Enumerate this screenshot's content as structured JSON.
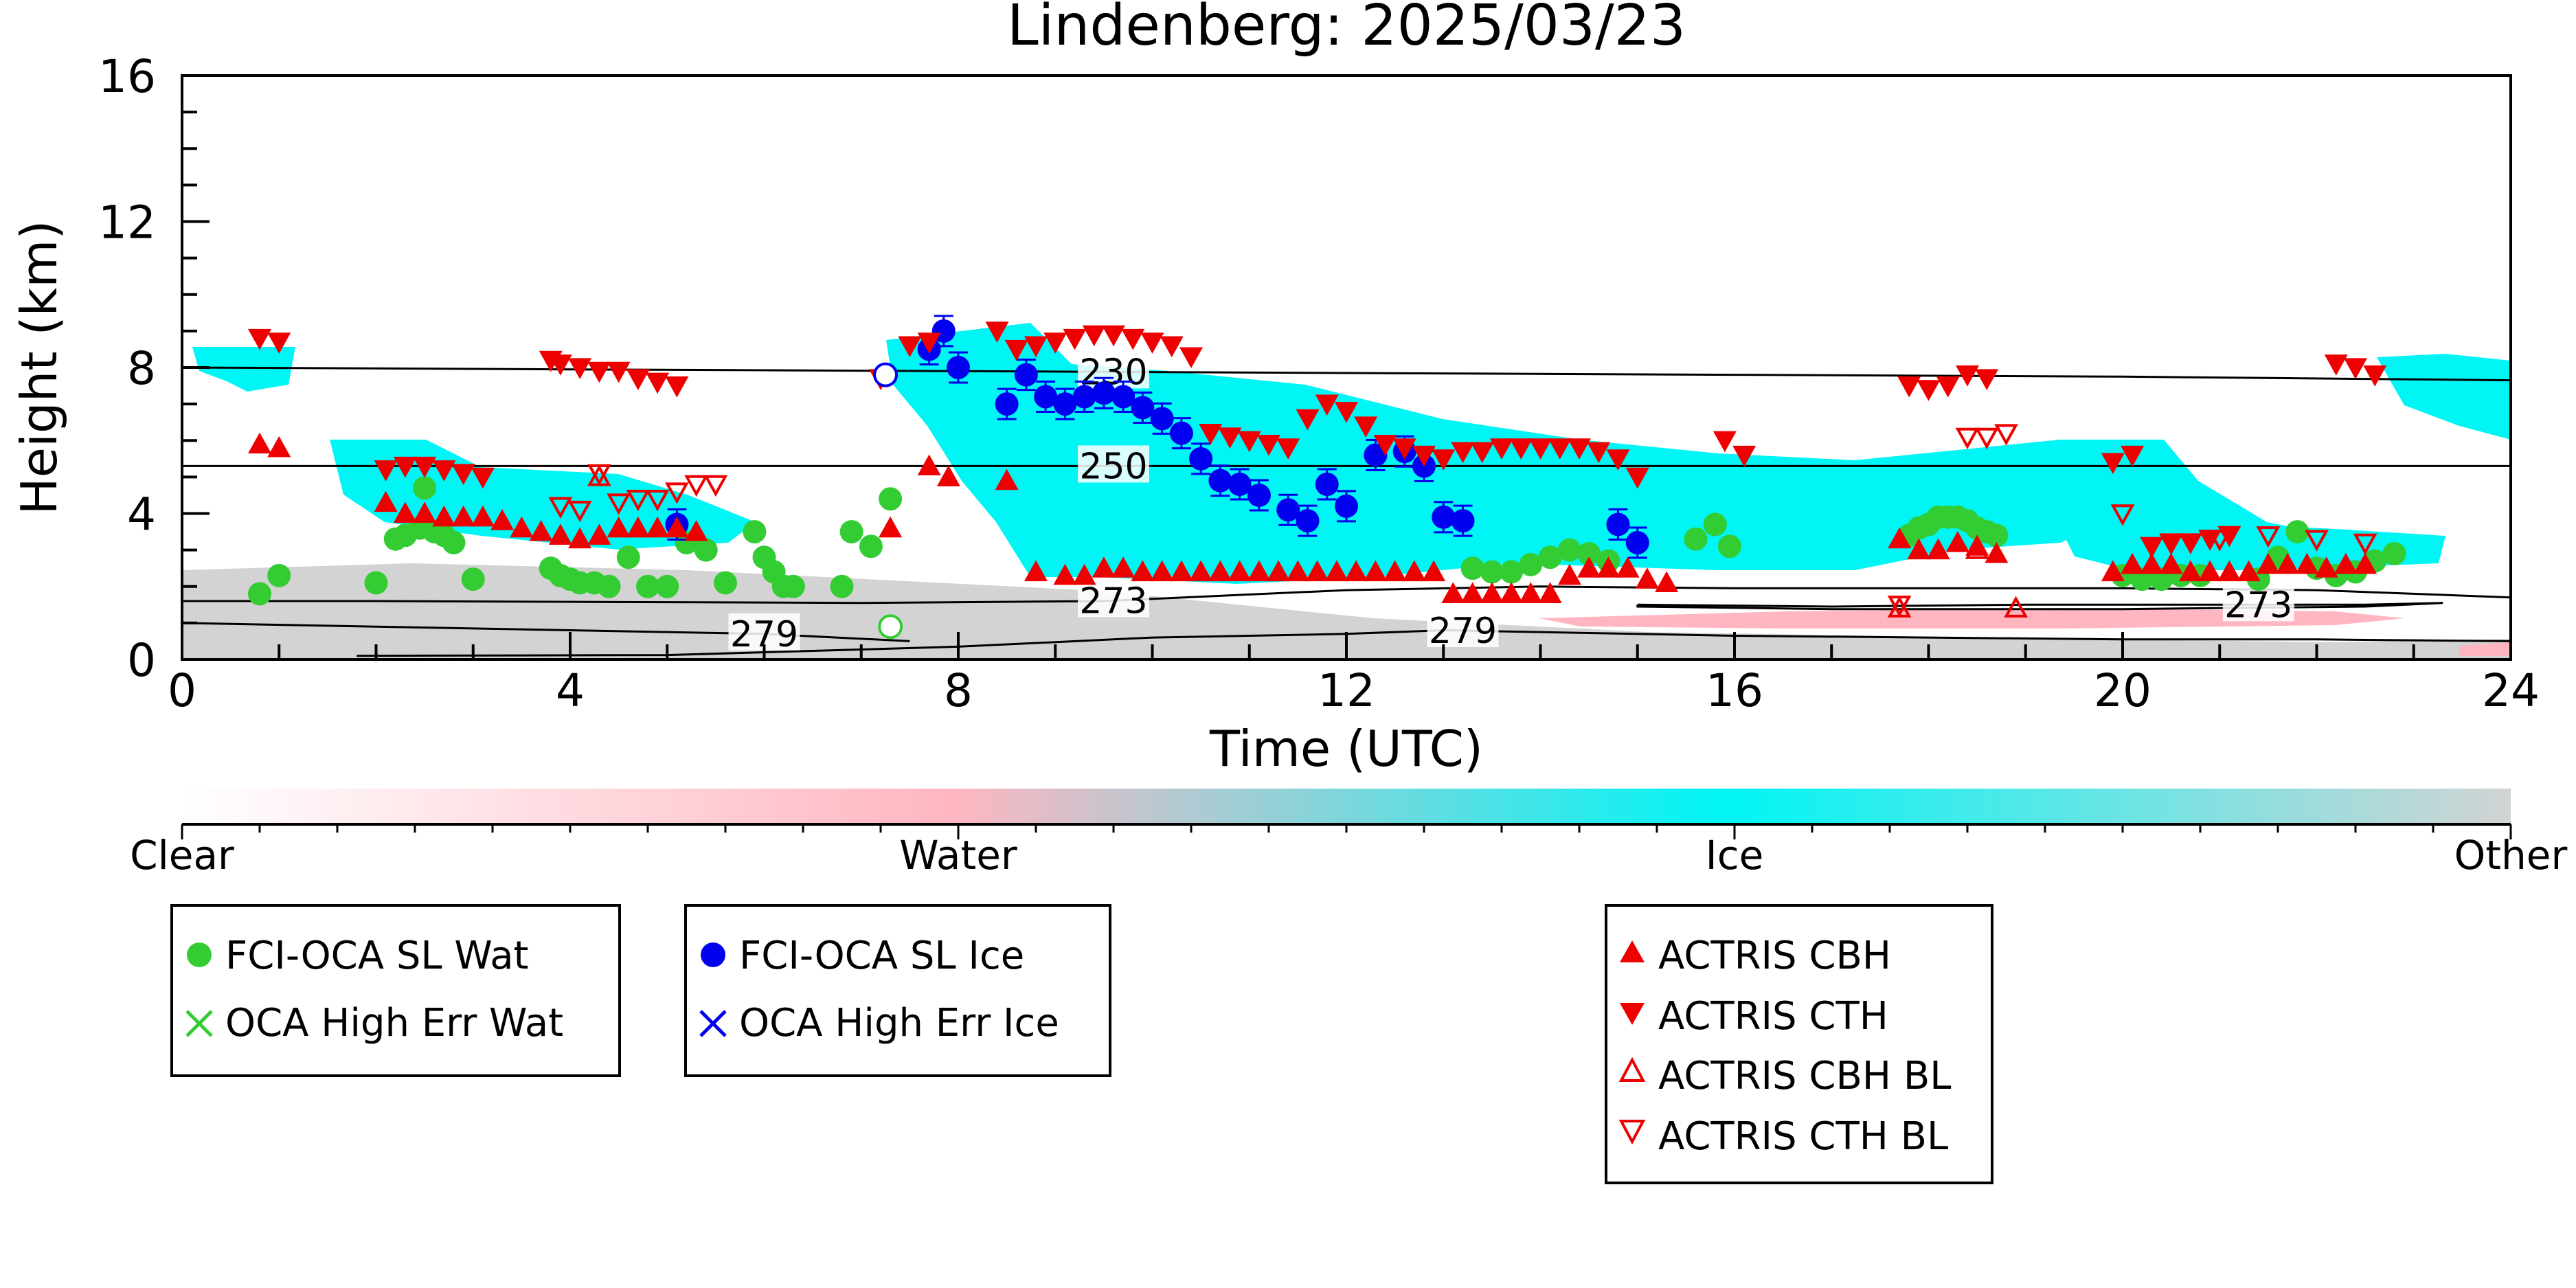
{
  "chart_data": {
    "type": "scatter",
    "title": "Lindenberg: 2025/03/23",
    "xlabel": "Time (UTC)",
    "ylabel": "Height (km)",
    "xlim": [
      0,
      24
    ],
    "ylim": [
      0,
      16
    ],
    "xticks": [
      "0",
      "4",
      "8",
      "12",
      "16",
      "20",
      "24"
    ],
    "yticks": [
      "0",
      "4",
      "8",
      "12",
      "16"
    ],
    "colorbar": {
      "labels": [
        "Clear",
        "Water",
        "Ice",
        "Other"
      ],
      "colors": [
        "#ffffff",
        "#ffb6c1",
        "#00f5f5",
        "#d3d3d3"
      ]
    },
    "contours": [
      {
        "label": "230",
        "label_x": 9.6,
        "points": [
          [
            0,
            8.0
          ],
          [
            4,
            7.95
          ],
          [
            8,
            7.9
          ],
          [
            12,
            7.85
          ],
          [
            16,
            7.8
          ],
          [
            20,
            7.75
          ],
          [
            24,
            7.65
          ]
        ]
      },
      {
        "label": "250",
        "label_x": 9.6,
        "points": [
          [
            0,
            5.3
          ],
          [
            4,
            5.3
          ],
          [
            8,
            5.3
          ],
          [
            12,
            5.3
          ],
          [
            16,
            5.3
          ],
          [
            20,
            5.3
          ],
          [
            24,
            5.3
          ]
        ]
      },
      {
        "label": "273",
        "label_x": 9.6,
        "points": [
          [
            0,
            1.6
          ],
          [
            2,
            1.6
          ],
          [
            4,
            1.58
          ],
          [
            7,
            1.55
          ],
          [
            9.5,
            1.6
          ],
          [
            12,
            1.9
          ],
          [
            14,
            2.0
          ],
          [
            16,
            1.95
          ],
          [
            18,
            1.95
          ],
          [
            20,
            1.95
          ],
          [
            22,
            1.9
          ],
          [
            24,
            1.7
          ]
        ]
      },
      {
        "label": "273",
        "label_x": 21.4,
        "points": [
          [
            15,
            1.5
          ],
          [
            17,
            1.45
          ],
          [
            19,
            1.5
          ],
          [
            21,
            1.5
          ],
          [
            22.5,
            1.5
          ],
          [
            23.3,
            1.55
          ],
          [
            22.5,
            1.45
          ],
          [
            20,
            1.38
          ],
          [
            17,
            1.38
          ],
          [
            15,
            1.45
          ],
          [
            15,
            1.5
          ]
        ]
      },
      {
        "label": "279",
        "label_x": 6.0,
        "points": [
          [
            0,
            1.0
          ],
          [
            2,
            0.9
          ],
          [
            4,
            0.8
          ],
          [
            6,
            0.7
          ],
          [
            7.5,
            0.5
          ]
        ]
      },
      {
        "label": "279",
        "label_x": 13.2,
        "points": [
          [
            1.8,
            0.1
          ],
          [
            5,
            0.12
          ],
          [
            8,
            0.35
          ],
          [
            10,
            0.6
          ],
          [
            12,
            0.7
          ],
          [
            13,
            0.8
          ],
          [
            16,
            0.65
          ],
          [
            18,
            0.6
          ],
          [
            20,
            0.55
          ],
          [
            22,
            0.55
          ],
          [
            24,
            0.5
          ]
        ]
      }
    ],
    "series": [
      {
        "name": "FCI-OCA SL Wat",
        "marker": "circle",
        "color": "#33cc33",
        "x": [
          0.8,
          1.0,
          2.0,
          2.2,
          2.3,
          2.45,
          2.5,
          2.6,
          2.7,
          2.8,
          3.0,
          3.8,
          3.9,
          4.0,
          4.1,
          4.25,
          4.4,
          4.6,
          4.8,
          5.0,
          5.2,
          5.4,
          5.6,
          5.9,
          6.0,
          6.1,
          6.2,
          6.3,
          6.8,
          6.9,
          7.1,
          7.3,
          13.3,
          13.5,
          13.7,
          13.9,
          14.1,
          14.3,
          14.5,
          14.7,
          15.6,
          15.8,
          15.95,
          17.8,
          17.9,
          18.0,
          18.1,
          18.2,
          18.3,
          18.4,
          18.5,
          18.6,
          18.7,
          20.0,
          20.2,
          20.4,
          20.6,
          20.8,
          21.4,
          21.6,
          21.8,
          22.0,
          22.2,
          22.4,
          22.6,
          22.8
        ],
        "y": [
          1.8,
          2.3,
          2.1,
          3.3,
          3.4,
          3.6,
          4.7,
          3.5,
          3.4,
          3.2,
          2.2,
          2.5,
          2.3,
          2.2,
          2.1,
          2.1,
          2.0,
          2.8,
          2.0,
          2.0,
          3.2,
          3.0,
          2.1,
          3.5,
          2.8,
          2.4,
          2.0,
          2.0,
          2.0,
          3.5,
          3.1,
          4.4,
          2.5,
          2.4,
          2.4,
          2.6,
          2.8,
          3.0,
          2.9,
          2.7,
          3.3,
          3.7,
          3.1,
          3.4,
          3.6,
          3.7,
          3.9,
          3.9,
          3.9,
          3.8,
          3.6,
          3.5,
          3.4,
          2.3,
          2.2,
          2.2,
          2.3,
          2.3,
          2.2,
          2.8,
          3.5,
          2.5,
          2.3,
          2.4,
          2.7,
          2.9
        ]
      },
      {
        "name": "OCA High Err Wat",
        "marker": "x",
        "color": "#33cc33",
        "x": [],
        "y": []
      },
      {
        "name": "FCI-OCA SL Ice",
        "marker": "circle",
        "color": "#0000ee",
        "x": [
          5.1,
          7.7,
          7.85,
          8.0,
          8.5,
          8.7,
          8.9,
          9.1,
          9.3,
          9.5,
          9.7,
          9.9,
          10.1,
          10.3,
          10.5,
          10.7,
          10.9,
          11.1,
          11.4,
          11.6,
          11.8,
          12.0,
          12.3,
          12.6,
          12.8,
          13.0,
          13.2,
          14.8,
          15.0
        ],
        "y": [
          3.7,
          8.5,
          9.0,
          8.0,
          7.0,
          7.8,
          7.2,
          7.0,
          7.2,
          7.3,
          7.2,
          6.9,
          6.6,
          6.2,
          5.5,
          4.9,
          4.8,
          4.5,
          4.1,
          3.8,
          4.8,
          4.2,
          5.6,
          5.7,
          5.3,
          3.9,
          3.8,
          3.7,
          3.2
        ],
        "errorbars": true
      },
      {
        "name": "OCA High Err Ice",
        "marker": "x",
        "color": "#0000ee",
        "x": [],
        "y": []
      },
      {
        "name": "ACTRIS CBH",
        "marker": "triangle-up",
        "color": "#ee0000",
        "x": [
          0.8,
          1.0,
          2.1,
          2.3,
          2.5,
          2.7,
          2.9,
          3.1,
          3.3,
          3.5,
          3.7,
          3.9,
          4.1,
          4.3,
          4.5,
          4.7,
          4.9,
          5.1,
          5.3,
          7.3,
          7.7,
          7.9,
          8.5,
          8.8,
          9.1,
          9.3,
          9.5,
          9.7,
          9.9,
          10.1,
          10.3,
          10.5,
          10.7,
          10.9,
          11.1,
          11.3,
          11.5,
          11.7,
          11.9,
          12.1,
          12.3,
          12.5,
          12.7,
          12.9,
          13.1,
          13.3,
          13.5,
          13.7,
          13.9,
          14.1,
          14.3,
          14.5,
          14.7,
          14.9,
          15.1,
          15.3,
          17.7,
          17.9,
          18.1,
          18.3,
          18.5,
          18.7,
          19.9,
          20.1,
          20.3,
          20.5,
          20.7,
          20.9,
          21.1,
          21.3,
          21.5,
          21.7,
          21.9,
          22.1,
          22.3,
          22.5
        ],
        "y": [
          5.9,
          5.8,
          4.3,
          4.0,
          4.0,
          3.9,
          3.9,
          3.9,
          3.8,
          3.6,
          3.5,
          3.4,
          3.3,
          3.4,
          3.6,
          3.6,
          3.6,
          3.6,
          3.5,
          3.6,
          5.3,
          5.0,
          4.9,
          2.4,
          2.3,
          2.3,
          2.5,
          2.5,
          2.4,
          2.4,
          2.4,
          2.4,
          2.4,
          2.4,
          2.4,
          2.4,
          2.4,
          2.4,
          2.4,
          2.4,
          2.4,
          2.4,
          2.4,
          2.4,
          1.8,
          1.8,
          1.8,
          1.8,
          1.8,
          1.8,
          2.3,
          2.5,
          2.5,
          2.5,
          2.2,
          2.1,
          3.3,
          3.0,
          3.0,
          3.2,
          3.1,
          2.9,
          2.4,
          2.6,
          2.6,
          2.6,
          2.4,
          2.4,
          2.4,
          2.4,
          2.6,
          2.6,
          2.6,
          2.5,
          2.6,
          2.6
        ]
      },
      {
        "name": "ACTRIS CTH",
        "marker": "triangle-down",
        "color": "#ee0000",
        "x": [
          0.8,
          1.0,
          2.1,
          2.3,
          2.5,
          2.7,
          2.9,
          3.1,
          3.8,
          3.9,
          4.1,
          4.3,
          4.5,
          4.7,
          4.9,
          5.1,
          7.2,
          7.5,
          7.7,
          8.4,
          8.6,
          8.8,
          9.0,
          9.2,
          9.4,
          9.6,
          9.8,
          10.0,
          10.2,
          10.4,
          10.6,
          10.8,
          11.0,
          11.2,
          11.4,
          11.6,
          11.8,
          12.0,
          12.2,
          12.4,
          12.6,
          12.8,
          13.0,
          13.2,
          13.4,
          13.6,
          13.8,
          14.0,
          14.2,
          14.4,
          14.6,
          14.8,
          15.0,
          15.9,
          16.1,
          17.8,
          18.0,
          18.2,
          18.4,
          18.6,
          19.9,
          20.1,
          20.3,
          20.5,
          20.7,
          20.9,
          21.1,
          22.2,
          22.4,
          22.6
        ],
        "y": [
          8.8,
          8.7,
          5.2,
          5.3,
          5.3,
          5.2,
          5.1,
          5.0,
          8.2,
          8.1,
          8.0,
          7.9,
          7.9,
          7.7,
          7.6,
          7.5,
          7.7,
          8.6,
          8.7,
          9.0,
          8.5,
          8.6,
          8.7,
          8.8,
          8.9,
          8.9,
          8.8,
          8.7,
          8.6,
          8.3,
          6.2,
          6.1,
          6.0,
          5.9,
          5.8,
          6.6,
          7.0,
          6.8,
          6.4,
          5.9,
          5.8,
          5.6,
          5.5,
          5.7,
          5.7,
          5.8,
          5.8,
          5.8,
          5.8,
          5.8,
          5.7,
          5.5,
          5.0,
          6.0,
          5.6,
          7.5,
          7.4,
          7.5,
          7.8,
          7.7,
          5.4,
          5.6,
          3.1,
          3.2,
          3.2,
          3.3,
          3.4,
          8.1,
          8.0,
          7.8
        ]
      },
      {
        "name": "ACTRIS CBH BL",
        "marker": "triangle-up-open",
        "color": "#ee0000",
        "x": [
          4.3,
          17.7,
          18.5,
          18.9
        ],
        "y": [
          5.0,
          1.4,
          3.0,
          1.4
        ]
      },
      {
        "name": "ACTRIS CTH BL",
        "marker": "triangle-down-open",
        "color": "#ee0000",
        "x": [
          4.3,
          3.9,
          4.1,
          4.5,
          4.7,
          4.9,
          5.1,
          5.3,
          5.5,
          17.7,
          18.4,
          18.6,
          18.8,
          20.0,
          20.5,
          21.0,
          21.5,
          22.0,
          22.5
        ],
        "y": [
          5.1,
          4.2,
          4.1,
          4.3,
          4.4,
          4.4,
          4.6,
          4.8,
          4.8,
          1.5,
          6.1,
          6.1,
          6.2,
          4.0,
          3.2,
          3.3,
          3.4,
          3.3,
          3.2
        ]
      }
    ],
    "open_points": [
      {
        "color": "#33cc33",
        "x": 7.3,
        "y": 0.9
      },
      {
        "color": "#0000ee",
        "x": 7.25,
        "y": 7.8
      }
    ]
  }
}
